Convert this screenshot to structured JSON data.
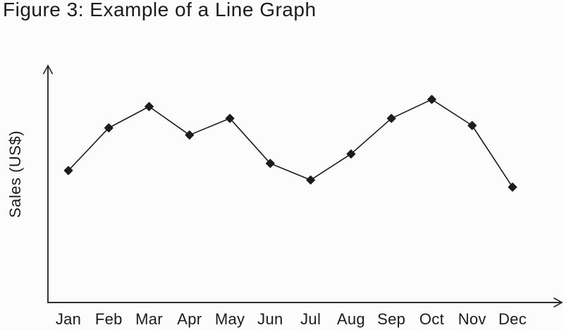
{
  "figure": {
    "title": "Figure 3: Example of a Line Graph",
    "y_axis_label": "Sales (US$)"
  },
  "colors": {
    "background": "#fcfcfc",
    "text": "#1b1b1b",
    "axis": "#2b2b2b",
    "line": "#1c1c1c",
    "marker": "#1c1c1c"
  },
  "chart_data": {
    "type": "line",
    "title": "Figure 3: Example of a Line Graph",
    "categories": [
      "Jan",
      "Feb",
      "Mar",
      "Apr",
      "May",
      "Jun",
      "Jul",
      "Aug",
      "Sep",
      "Oct",
      "Nov",
      "Dec"
    ],
    "series": [
      {
        "name": "Sales (US$)",
        "values": [
          56,
          74,
          83,
          71,
          78,
          59,
          52,
          63,
          78,
          86,
          75,
          49
        ]
      }
    ],
    "xlabel": "",
    "ylabel": "Sales (US$)",
    "ylim": [
      0,
      100
    ],
    "y_scale_note": "y-axis has no tick labels; values are estimated on a relative 0-100 scale",
    "grid": false,
    "legend": "none",
    "marker": "diamond",
    "x_axis_arrow": true,
    "y_axis_arrow": true
  }
}
